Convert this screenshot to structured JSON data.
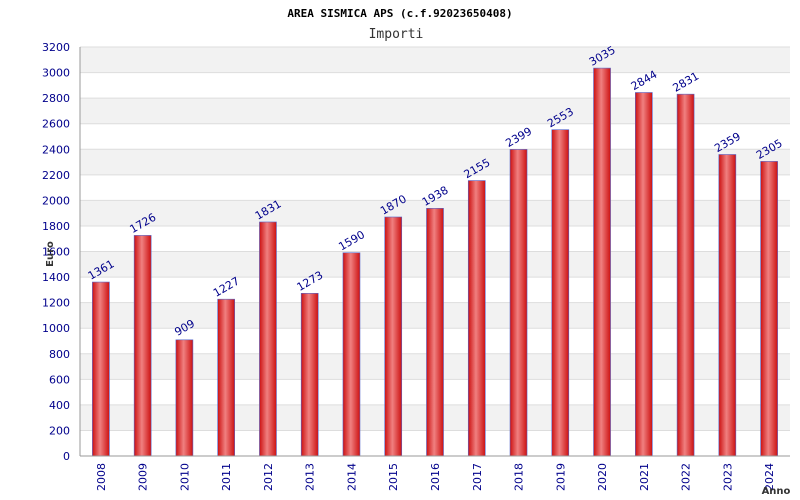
{
  "chart_data": {
    "type": "bar",
    "title": "AREA SISMICA APS (c.f.92023650408)",
    "subtitle": "Importi",
    "xlabel": "Anno",
    "ylabel": "Euro",
    "categories": [
      "2008",
      "2009",
      "2010",
      "2011",
      "2012",
      "2013",
      "2014",
      "2015",
      "2016",
      "2017",
      "2018",
      "2019",
      "2020",
      "2021",
      "2022",
      "2023",
      "2024"
    ],
    "values": [
      1361,
      1726,
      909,
      1227,
      1831,
      1273,
      1590,
      1870,
      1938,
      2155,
      2399,
      2553,
      3035,
      2844,
      2831,
      2359,
      2305
    ],
    "ylim": [
      0,
      3200
    ],
    "y_ticks": [
      0,
      200,
      400,
      600,
      800,
      1000,
      1200,
      1400,
      1600,
      1800,
      2000,
      2200,
      2400,
      2600,
      2800,
      3000,
      3200
    ],
    "grid": true,
    "colors": {
      "bar_center": "#f08080",
      "bar_edge": "#cc1111",
      "bar_outline": "#5566cc",
      "tick_text": "#00008b",
      "band_alt": "#f2f2f2",
      "grid": "#dddddd"
    }
  }
}
